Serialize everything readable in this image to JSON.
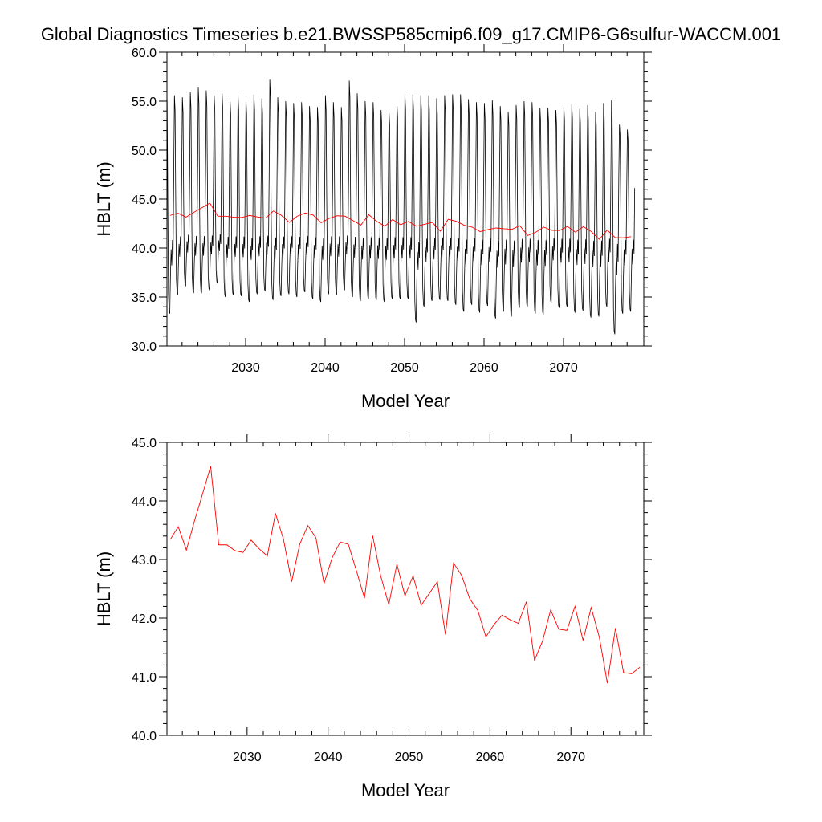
{
  "title": "Global Diagnostics Timeseries b.e21.BWSSP585cmip6.f09_g17.CMIP6-G6sulfur-WACCM.001",
  "colors": {
    "monthly": "#000000",
    "annual": "#ff0000",
    "axes": "#000000"
  },
  "chart_data": [
    {
      "type": "line",
      "xlabel": "Model Year",
      "ylabel": "HBLT (m)",
      "xlim": [
        2020.1,
        2080.1
      ],
      "ylim": [
        30.0,
        60.0
      ],
      "xticks": [
        2030,
        2040,
        2050,
        2060,
        2070
      ],
      "xtick_labels": [
        "2030",
        "2040",
        "2050",
        "2060",
        "2070"
      ],
      "yticks": [
        30,
        35,
        40,
        45,
        50,
        55,
        60
      ],
      "ytick_labels": [
        "30.0",
        "35.0",
        "40.0",
        "45.0",
        "50.0",
        "55.0",
        "60.0"
      ],
      "grid": false,
      "series": [
        {
          "style": "monthly",
          "x_start": 2020.04,
          "step": 0.08333,
          "cycle_values": [
            55.8,
            54.2,
            44.5,
            37.3,
            36.0,
            35.8,
            38.6,
            40.6,
            39.4,
            41.3,
            40.2,
            47.5
          ],
          "annual_peaks": [
            56.7,
            55.6,
            55.4,
            55.9,
            56.4,
            56.1,
            55.6,
            55.8,
            55.1,
            55.7,
            55.2,
            55.7,
            55.3,
            57.2,
            55.4,
            55.0,
            54.8,
            54.9,
            54.5,
            54.4,
            55.6,
            54.9,
            54.4,
            57.1,
            55.8,
            55.0,
            54.9,
            54.1,
            53.9,
            54.8,
            55.8,
            55.7,
            55.6,
            55.6,
            55.3,
            55.6,
            55.7,
            55.7,
            55.2,
            54.9,
            54.8,
            55.1,
            54.5,
            53.9,
            54.6,
            55.0,
            54.9,
            54.3,
            54.3,
            54.1,
            54.5,
            54.7,
            54.2,
            54.6,
            53.9,
            54.8,
            55.1,
            52.6,
            52.1
          ],
          "annual_troughs": [
            33.3,
            35.2,
            36.1,
            35.4,
            35.4,
            35.7,
            36.4,
            35.0,
            35.2,
            35.1,
            34.5,
            35.3,
            35.6,
            34.7,
            35.1,
            35.3,
            35.0,
            35.5,
            34.8,
            34.5,
            35.3,
            35.2,
            35.7,
            35.0,
            34.6,
            34.8,
            34.7,
            34.5,
            34.8,
            34.8,
            34.8,
            32.4,
            34.0,
            34.6,
            34.7,
            34.6,
            34.2,
            33.5,
            34.2,
            33.4,
            34.1,
            32.8,
            33.5,
            33.0,
            33.9,
            34.0,
            33.3,
            33.2,
            34.4,
            33.9,
            34.0,
            33.4,
            33.6,
            32.9,
            33.0,
            34.0,
            31.2,
            33.3,
            33.5
          ]
        },
        {
          "style": "annual",
          "x": [
            2020.5,
            2021.5,
            2022.5,
            2023.5,
            2024.5,
            2025.5,
            2026.5,
            2027.5,
            2028.5,
            2029.5,
            2030.5,
            2031.5,
            2032.5,
            2033.5,
            2034.5,
            2035.5,
            2036.5,
            2037.5,
            2038.5,
            2039.5,
            2040.5,
            2041.5,
            2042.5,
            2043.5,
            2044.5,
            2045.5,
            2046.5,
            2047.5,
            2048.5,
            2049.5,
            2050.5,
            2051.5,
            2052.5,
            2053.5,
            2054.5,
            2055.5,
            2056.5,
            2057.5,
            2058.5,
            2059.5,
            2060.5,
            2061.5,
            2062.5,
            2063.5,
            2064.5,
            2065.5,
            2066.5,
            2067.5,
            2068.5,
            2069.5,
            2070.5,
            2071.5,
            2072.5,
            2073.5,
            2074.5,
            2075.5,
            2076.5,
            2077.5,
            2078.5
          ],
          "y": [
            43.34,
            43.56,
            43.16,
            43.66,
            44.12,
            44.59,
            43.25,
            43.25,
            43.15,
            43.12,
            43.33,
            43.18,
            43.06,
            43.79,
            43.34,
            42.62,
            43.26,
            43.58,
            43.37,
            42.59,
            43.03,
            43.3,
            43.26,
            42.81,
            42.34,
            43.41,
            42.72,
            42.23,
            42.92,
            42.38,
            42.72,
            42.22,
            42.42,
            42.62,
            41.72,
            42.94,
            42.73,
            42.33,
            42.13,
            41.68,
            41.89,
            42.05,
            41.97,
            41.91,
            42.28,
            41.28,
            41.61,
            42.14,
            41.81,
            41.79,
            42.2,
            41.62,
            42.18,
            41.68,
            40.89,
            41.83,
            41.07,
            41.05,
            41.16
          ]
        }
      ]
    },
    {
      "type": "line",
      "xlabel": "Model Year",
      "ylabel": "HBLT (m)",
      "xlim": [
        2020.1,
        2079.0
      ],
      "ylim": [
        40.0,
        45.0
      ],
      "xticks": [
        2030,
        2040,
        2050,
        2060,
        2070
      ],
      "xtick_labels": [
        "2030",
        "2040",
        "2050",
        "2060",
        "2070"
      ],
      "yticks": [
        40,
        41,
        42,
        43,
        44,
        45
      ],
      "ytick_labels": [
        "40.0",
        "41.0",
        "42.0",
        "43.0",
        "44.0",
        "45.0"
      ],
      "grid": false,
      "series": [
        {
          "style": "annual",
          "x": [
            2020.5,
            2021.5,
            2022.5,
            2023.5,
            2024.5,
            2025.5,
            2026.5,
            2027.5,
            2028.5,
            2029.5,
            2030.5,
            2031.5,
            2032.5,
            2033.5,
            2034.5,
            2035.5,
            2036.5,
            2037.5,
            2038.5,
            2039.5,
            2040.5,
            2041.5,
            2042.5,
            2043.5,
            2044.5,
            2045.5,
            2046.5,
            2047.5,
            2048.5,
            2049.5,
            2050.5,
            2051.5,
            2052.5,
            2053.5,
            2054.5,
            2055.5,
            2056.5,
            2057.5,
            2058.5,
            2059.5,
            2060.5,
            2061.5,
            2062.5,
            2063.5,
            2064.5,
            2065.5,
            2066.5,
            2067.5,
            2068.5,
            2069.5,
            2070.5,
            2071.5,
            2072.5,
            2073.5,
            2074.5,
            2075.5,
            2076.5,
            2077.5,
            2078.5
          ],
          "y": [
            43.34,
            43.56,
            43.16,
            43.66,
            44.12,
            44.59,
            43.25,
            43.25,
            43.15,
            43.12,
            43.33,
            43.18,
            43.06,
            43.79,
            43.34,
            42.62,
            43.26,
            43.58,
            43.37,
            42.59,
            43.03,
            43.3,
            43.26,
            42.81,
            42.34,
            43.41,
            42.72,
            42.23,
            42.92,
            42.38,
            42.72,
            42.22,
            42.42,
            42.62,
            41.72,
            42.94,
            42.73,
            42.33,
            42.13,
            41.68,
            41.89,
            42.05,
            41.97,
            41.91,
            42.28,
            41.28,
            41.61,
            42.14,
            41.81,
            41.79,
            42.2,
            41.62,
            42.18,
            41.68,
            40.89,
            41.83,
            41.07,
            41.05,
            41.16
          ]
        }
      ]
    }
  ]
}
